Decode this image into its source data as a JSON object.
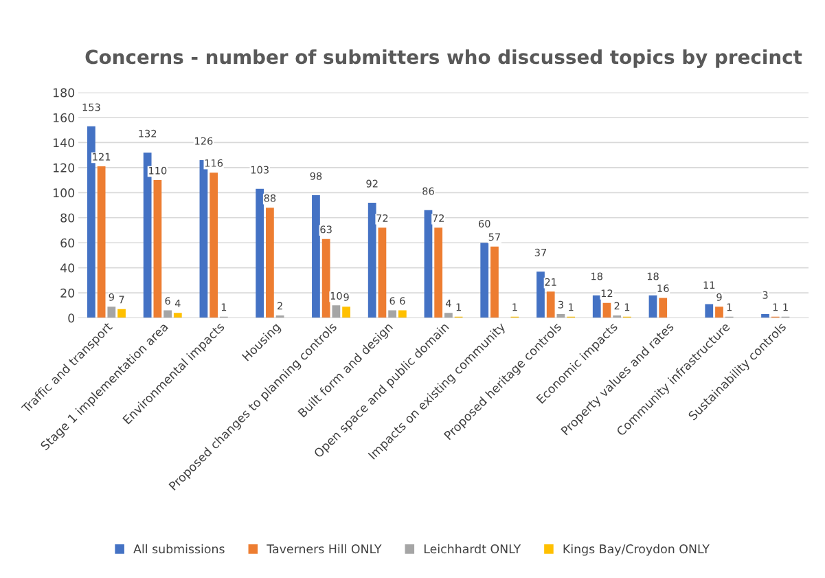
{
  "chart_data": {
    "type": "bar",
    "title": "Concerns - number of submitters who discussed topics by precinct",
    "categories": [
      "Traffic and transport",
      "Stage 1 implementation area",
      "Environmental impacts",
      "Housing",
      "Proposed changes to planning controls",
      "Built form and design",
      "Open space and public domain",
      "Impacts on existing community",
      "Proposed heritage controls",
      "Economic impacts",
      "Property values and rates",
      "Community infrastructure",
      "Sustainability controls"
    ],
    "series": [
      {
        "name": "All submissions",
        "color": "#4472c4",
        "values": [
          153,
          132,
          126,
          103,
          98,
          92,
          86,
          60,
          37,
          18,
          18,
          11,
          3
        ]
      },
      {
        "name": "Taverners Hill ONLY",
        "color": "#ed7d31",
        "values": [
          121,
          110,
          116,
          88,
          63,
          72,
          72,
          57,
          21,
          12,
          16,
          9,
          1
        ]
      },
      {
        "name": "Leichhardt ONLY",
        "color": "#a5a5a5",
        "values": [
          9,
          6,
          1,
          2,
          10,
          6,
          4,
          null,
          3,
          2,
          null,
          1,
          1
        ]
      },
      {
        "name": "Kings Bay/Croydon ONLY",
        "color": "#ffc000",
        "values": [
          7,
          4,
          null,
          null,
          9,
          6,
          1,
          1,
          1,
          1,
          null,
          null,
          null
        ]
      }
    ],
    "ylim": [
      0,
      180
    ],
    "yticks": [
      0,
      20,
      40,
      60,
      80,
      100,
      120,
      140,
      160,
      180
    ],
    "data_labels": true,
    "grid": "y",
    "legend": "bottom"
  }
}
